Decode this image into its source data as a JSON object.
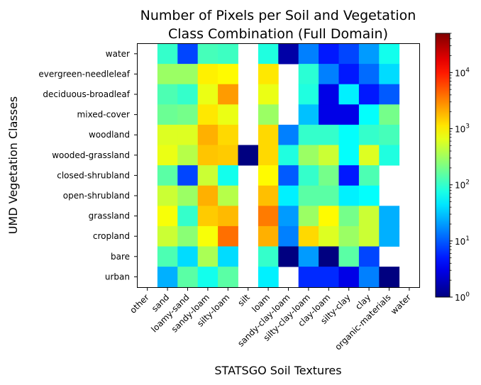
{
  "chart_data": {
    "type": "heatmap",
    "title": [
      "Number of Pixels per Soil and Vegetation",
      "Class Combination (Full Domain)"
    ],
    "xlabel": "STATSGO Soil Textures",
    "ylabel": "UMD Vegetation Classes",
    "x_categories": [
      "other",
      "sand",
      "loamy-sand",
      "sandy-loam",
      "silty-loam",
      "silt",
      "loam",
      "sandy-clay-loam",
      "silty-clay-loam",
      "clay-loam",
      "silty-clay",
      "clay",
      "organic-materials",
      "water"
    ],
    "y_categories": [
      "water",
      "evergreen-needleleaf",
      "deciduous-broadleaf",
      "mixed-cover",
      "woodland",
      "wooded-grassland",
      "closed-shrubland",
      "open-shrubland",
      "grassland",
      "cropland",
      "bare",
      "urban"
    ],
    "colormap": "jet",
    "color_scale": "log",
    "clim": [
      1,
      50000
    ],
    "colorbar_ticks": [
      {
        "value": 1,
        "base": "10",
        "exp": "0"
      },
      {
        "value": 10,
        "base": "10",
        "exp": "1"
      },
      {
        "value": 100,
        "base": "10",
        "exp": "2"
      },
      {
        "value": 1000,
        "base": "10",
        "exp": "3"
      },
      {
        "value": 10000,
        "base": "10",
        "exp": "4"
      }
    ],
    "values": [
      [
        null,
        100,
        8,
        120,
        110,
        null,
        80,
        1.5,
        15,
        5,
        8,
        20,
        70,
        null
      ],
      [
        null,
        300,
        300,
        1000,
        900,
        null,
        1100,
        null,
        90,
        15,
        5,
        12,
        40,
        null
      ],
      [
        null,
        130,
        100,
        700,
        2500,
        null,
        700,
        null,
        80,
        3,
        50,
        5,
        10,
        null
      ],
      [
        null,
        180,
        200,
        1100,
        700,
        null,
        300,
        null,
        30,
        3,
        3,
        60,
        200,
        null
      ],
      [
        null,
        600,
        600,
        2000,
        1300,
        null,
        1300,
        15,
        100,
        100,
        60,
        100,
        120,
        null
      ],
      [
        null,
        700,
        400,
        1600,
        1500,
        1,
        1300,
        80,
        300,
        500,
        60,
        600,
        80,
        null
      ],
      [
        null,
        150,
        8,
        500,
        70,
        null,
        900,
        10,
        100,
        200,
        5,
        130,
        null,
        null
      ],
      [
        null,
        500,
        300,
        2000,
        400,
        null,
        1700,
        50,
        150,
        150,
        50,
        60,
        null,
        null
      ],
      [
        null,
        800,
        100,
        1500,
        1800,
        null,
        3500,
        20,
        300,
        900,
        200,
        500,
        25,
        null
      ],
      [
        null,
        500,
        250,
        800,
        4000,
        null,
        2000,
        15,
        1300,
        600,
        300,
        500,
        25,
        null
      ],
      [
        null,
        130,
        40,
        350,
        40,
        null,
        100,
        1,
        20,
        1,
        150,
        8,
        null,
        null
      ],
      [
        null,
        25,
        150,
        70,
        150,
        null,
        50,
        null,
        6,
        6,
        3,
        15,
        1,
        null
      ]
    ]
  }
}
